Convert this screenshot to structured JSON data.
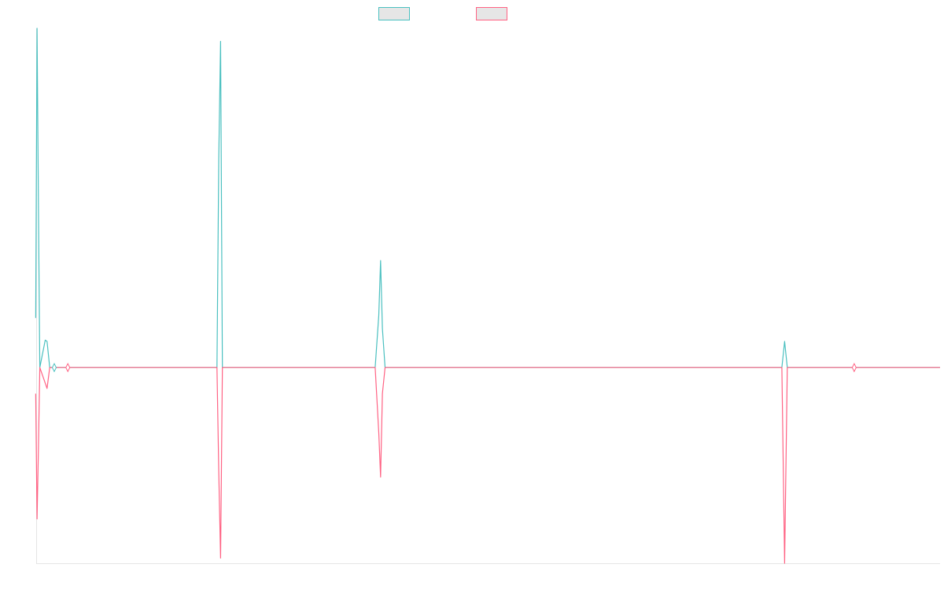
{
  "chart_data": {
    "type": "line",
    "title": "",
    "xlabel": "",
    "ylabel": "",
    "xlim": [
      0,
      100
    ],
    "ylim": [
      -7.5,
      13
    ],
    "grid": false,
    "legend_position": "top-center",
    "series": [
      {
        "color": "#4bc0c0",
        "values": [
          [
            -0.05,
            1.9
          ],
          [
            0.1,
            13.0
          ],
          [
            0.25,
            6.0
          ],
          [
            0.4,
            0.0
          ],
          [
            1.0,
            1.05
          ],
          [
            1.2,
            1.0
          ],
          [
            1.5,
            0.0
          ],
          [
            2.0,
            0.0
          ],
          [
            3.5,
            0.0
          ],
          [
            20.0,
            0.0
          ],
          [
            20.2,
            8.0
          ],
          [
            20.4,
            12.5
          ],
          [
            20.6,
            0.0
          ],
          [
            37.5,
            0.0
          ],
          [
            37.9,
            2.0
          ],
          [
            38.1,
            4.1
          ],
          [
            38.3,
            1.5
          ],
          [
            38.6,
            0.0
          ],
          [
            82.5,
            0.0
          ],
          [
            82.8,
            1.0
          ],
          [
            83.1,
            0.0
          ],
          [
            90.5,
            0.0
          ],
          [
            100,
            0.0
          ]
        ]
      },
      {
        "color": "#ff6384",
        "values": [
          [
            -0.05,
            -1.0
          ],
          [
            0.1,
            -5.8
          ],
          [
            0.25,
            -3.0
          ],
          [
            0.4,
            0.0
          ],
          [
            1.0,
            -0.6
          ],
          [
            1.2,
            -0.8
          ],
          [
            1.5,
            0.0
          ],
          [
            3.5,
            0.0
          ],
          [
            20.0,
            0.0
          ],
          [
            20.2,
            -4.0
          ],
          [
            20.4,
            -7.3
          ],
          [
            20.6,
            0.0
          ],
          [
            37.5,
            0.0
          ],
          [
            37.9,
            -2.5
          ],
          [
            38.1,
            -4.2
          ],
          [
            38.3,
            -1.0
          ],
          [
            38.6,
            0.0
          ],
          [
            82.5,
            0.0
          ],
          [
            82.8,
            -7.5
          ],
          [
            83.1,
            0.0
          ],
          [
            90.5,
            0.0
          ],
          [
            100,
            0.0
          ]
        ]
      }
    ],
    "markers": [
      {
        "x": 2.0,
        "y": 0.0,
        "series": 0
      },
      {
        "x": 3.5,
        "y": 0.0,
        "series": 1
      },
      {
        "x": 90.5,
        "y": 0.0,
        "series": 1
      }
    ]
  },
  "legend": [
    {
      "label": "",
      "color": "#4bc0c0"
    },
    {
      "label": "",
      "color": "#ff6384"
    }
  ]
}
